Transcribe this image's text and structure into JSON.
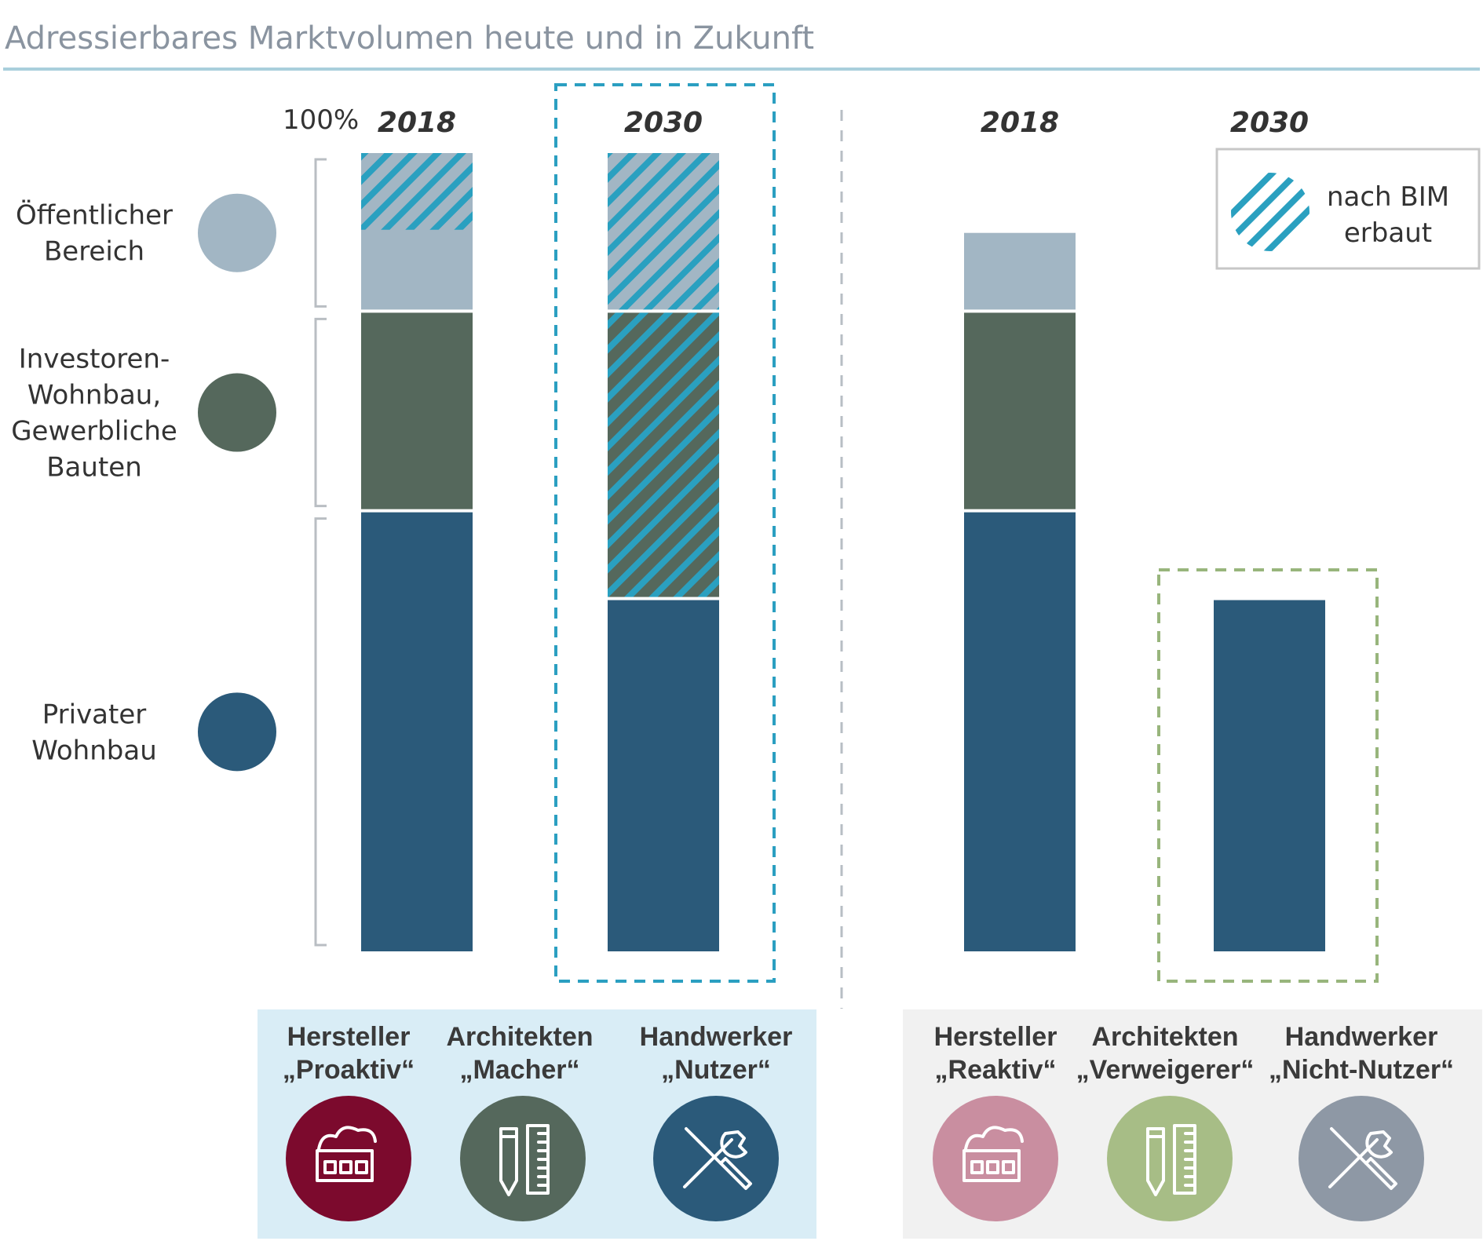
{
  "chart_data": {
    "type": "bar",
    "stacked": true,
    "title": "Adressierbares Marktvolumen heute und in Zukunft",
    "y_axis_label": "100%",
    "categories": [
      "2018",
      "2030",
      "2018",
      "2030"
    ],
    "series": [
      {
        "name": "Privater Wohnbau",
        "color": "#2b5a7a",
        "values": [
          55,
          44,
          55,
          44
        ]
      },
      {
        "name": "Investoren-Wohnbau, Gewerbliche Bauten",
        "color": "#55685c",
        "values": [
          25,
          36,
          25,
          0
        ]
      },
      {
        "name": "Öffentlicher Bereich",
        "color": "#a2b6c4",
        "values": [
          20,
          20,
          10,
          0
        ]
      }
    ],
    "bim_share": [
      {
        "category_index": 0,
        "series": "Öffentlicher Bereich",
        "value": 10
      },
      {
        "category_index": 1,
        "series": "Investoren-Wohnbau, Gewerbliche Bauten",
        "value": 36
      },
      {
        "category_index": 1,
        "series": "Öffentlicher Bereich",
        "value": 20
      }
    ],
    "legend_hatch_label": [
      "nach BIM",
      "erbaut"
    ],
    "row_labels": [
      {
        "series": "Öffentlicher Bereich",
        "lines": [
          "Öffentlicher",
          "Bereich"
        ],
        "color": "#a2b6c4"
      },
      {
        "series": "Investoren-Wohnbau, Gewerbliche Bauten",
        "lines": [
          "Investoren-",
          "Wohnbau,",
          "Gewerbliche",
          "Bauten"
        ],
        "color": "#55685c"
      },
      {
        "series": "Privater Wohnbau",
        "lines": [
          "Privater",
          "Wohnbau"
        ],
        "color": "#2b5a7a"
      }
    ],
    "groups": [
      {
        "actors": [
          {
            "lines": [
              "Hersteller",
              "„Proaktiv“"
            ],
            "icon": "factory-icon",
            "color": "#7c0a2d"
          },
          {
            "lines": [
              "Architekten",
              "„Macher“"
            ],
            "icon": "pencil-ruler-icon",
            "color": "#55685c"
          },
          {
            "lines": [
              "Handwerker",
              "„Nutzer“"
            ],
            "icon": "tools-icon",
            "color": "#2b5a7a"
          }
        ]
      },
      {
        "actors": [
          {
            "lines": [
              "Hersteller",
              "„Reaktiv“"
            ],
            "icon": "factory-icon",
            "color": "#c98ea0"
          },
          {
            "lines": [
              "Architekten",
              "„Verweigerer“"
            ],
            "icon": "pencil-ruler-icon",
            "color": "#a7bd86"
          },
          {
            "lines": [
              "Handwerker",
              "„Nicht-Nutzer“"
            ],
            "icon": "tools-icon",
            "color": "#8e98a5"
          }
        ]
      }
    ]
  }
}
